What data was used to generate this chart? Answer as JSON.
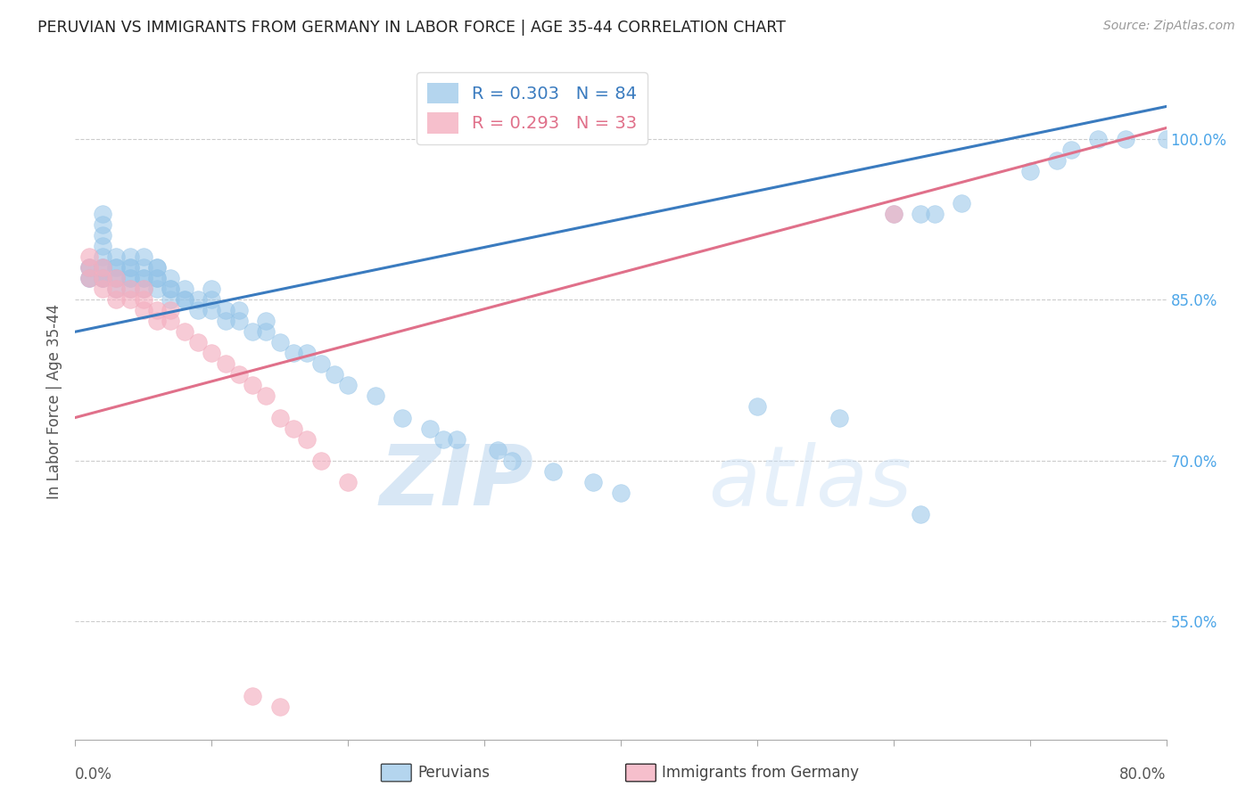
{
  "title": "PERUVIAN VS IMMIGRANTS FROM GERMANY IN LABOR FORCE | AGE 35-44 CORRELATION CHART",
  "source": "Source: ZipAtlas.com",
  "ylabel": "In Labor Force | Age 35-44",
  "blue_r": 0.303,
  "blue_n": 84,
  "pink_r": 0.293,
  "pink_n": 33,
  "blue_color": "#94c4e8",
  "pink_color": "#f4afc0",
  "line_blue": "#3a7bbf",
  "line_pink": "#e0708a",
  "tick_color": "#4da6e8",
  "xlim": [
    0.0,
    0.8
  ],
  "ylim": [
    0.44,
    1.07
  ],
  "yticks": [
    0.55,
    0.7,
    0.85,
    1.0
  ],
  "ytick_labels": [
    "55.0%",
    "70.0%",
    "85.0%",
    "100.0%"
  ],
  "blue_line_x0": 0.0,
  "blue_line_y0": 0.82,
  "blue_line_x1": 0.8,
  "blue_line_y1": 1.03,
  "pink_line_x0": 0.0,
  "pink_line_y0": 0.74,
  "pink_line_x1": 0.8,
  "pink_line_y1": 1.01,
  "blue_x": [
    0.01,
    0.01,
    0.01,
    0.01,
    0.02,
    0.02,
    0.02,
    0.02,
    0.02,
    0.02,
    0.02,
    0.02,
    0.02,
    0.02,
    0.03,
    0.03,
    0.03,
    0.03,
    0.03,
    0.03,
    0.04,
    0.04,
    0.04,
    0.04,
    0.04,
    0.04,
    0.05,
    0.05,
    0.05,
    0.05,
    0.05,
    0.06,
    0.06,
    0.06,
    0.06,
    0.06,
    0.07,
    0.07,
    0.07,
    0.07,
    0.08,
    0.08,
    0.08,
    0.09,
    0.09,
    0.1,
    0.1,
    0.1,
    0.11,
    0.11,
    0.12,
    0.12,
    0.13,
    0.14,
    0.14,
    0.15,
    0.16,
    0.17,
    0.18,
    0.19,
    0.2,
    0.22,
    0.24,
    0.26,
    0.27,
    0.28,
    0.31,
    0.32,
    0.35,
    0.38,
    0.4,
    0.5,
    0.56,
    0.6,
    0.62,
    0.63,
    0.65,
    0.7,
    0.72,
    0.73,
    0.75,
    0.77,
    0.8,
    0.62
  ],
  "blue_y": [
    0.87,
    0.87,
    0.88,
    0.88,
    0.87,
    0.87,
    0.87,
    0.88,
    0.88,
    0.89,
    0.9,
    0.91,
    0.92,
    0.93,
    0.86,
    0.87,
    0.87,
    0.88,
    0.88,
    0.89,
    0.86,
    0.87,
    0.87,
    0.88,
    0.88,
    0.89,
    0.86,
    0.87,
    0.87,
    0.88,
    0.89,
    0.86,
    0.87,
    0.87,
    0.88,
    0.88,
    0.85,
    0.86,
    0.86,
    0.87,
    0.85,
    0.85,
    0.86,
    0.84,
    0.85,
    0.84,
    0.85,
    0.86,
    0.83,
    0.84,
    0.83,
    0.84,
    0.82,
    0.82,
    0.83,
    0.81,
    0.8,
    0.8,
    0.79,
    0.78,
    0.77,
    0.76,
    0.74,
    0.73,
    0.72,
    0.72,
    0.71,
    0.7,
    0.69,
    0.68,
    0.67,
    0.75,
    0.74,
    0.93,
    0.93,
    0.93,
    0.94,
    0.97,
    0.98,
    0.99,
    1.0,
    1.0,
    1.0,
    0.65
  ],
  "pink_x": [
    0.01,
    0.01,
    0.01,
    0.02,
    0.02,
    0.02,
    0.03,
    0.03,
    0.03,
    0.04,
    0.04,
    0.05,
    0.05,
    0.05,
    0.06,
    0.06,
    0.07,
    0.07,
    0.08,
    0.09,
    0.1,
    0.11,
    0.12,
    0.13,
    0.14,
    0.15,
    0.16,
    0.17,
    0.18,
    0.2,
    0.13,
    0.15,
    0.6
  ],
  "pink_y": [
    0.87,
    0.88,
    0.89,
    0.86,
    0.87,
    0.88,
    0.85,
    0.86,
    0.87,
    0.85,
    0.86,
    0.84,
    0.85,
    0.86,
    0.83,
    0.84,
    0.83,
    0.84,
    0.82,
    0.81,
    0.8,
    0.79,
    0.78,
    0.77,
    0.76,
    0.74,
    0.73,
    0.72,
    0.7,
    0.68,
    0.48,
    0.47,
    0.93
  ],
  "watermark_zip": "ZIP",
  "watermark_atlas": "atlas",
  "background": "#ffffff"
}
